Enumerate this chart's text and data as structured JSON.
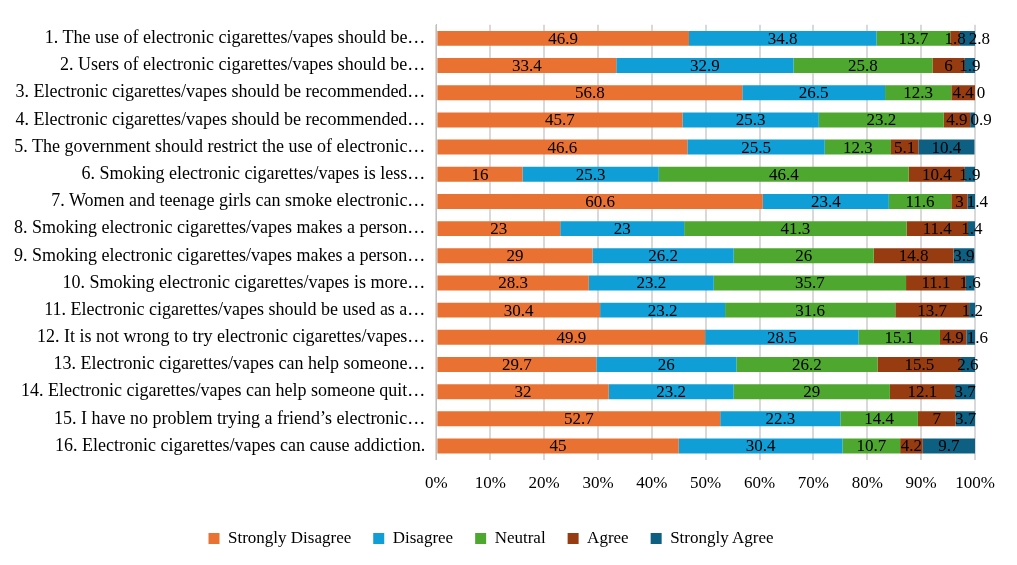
{
  "chart_data": {
    "type": "bar",
    "orientation": "horizontal",
    "stacked": true,
    "data_labels": true,
    "grid": "x",
    "legend": "bottom",
    "categories": [
      "1. The use of electronic cigarettes/vapes should be…",
      "2. Users of electronic cigarettes/vapes should be…",
      "3. Electronic cigarettes/vapes should be recommended…",
      "4. Electronic cigarettes/vapes should be recommended…",
      "5. The government should restrict the use of electronic…",
      "6. Smoking electronic cigarettes/vapes is less…",
      "7. Women and teenage girls can smoke electronic…",
      "8. Smoking electronic cigarettes/vapes makes a person…",
      "9. Smoking electronic cigarettes/vapes makes a person…",
      "10. Smoking electronic cigarettes/vapes is more…",
      "11. Electronic cigarettes/vapes should be used as a…",
      "12. It is not wrong to try electronic cigarettes/vapes…",
      "13. Electronic cigarettes/vapes can help someone…",
      "14. Electronic cigarettes/vapes can help someone quit…",
      "15. I have no problem trying a friend’s electronic…",
      "16. Electronic cigarettes/vapes can cause addiction."
    ],
    "series": [
      {
        "name": "Strongly Disagree",
        "color": "#e97132",
        "values": [
          46.9,
          33.4,
          56.8,
          45.7,
          46.6,
          16,
          60.6,
          23,
          29,
          28.3,
          30.4,
          49.9,
          29.7,
          32,
          52.7,
          45
        ]
      },
      {
        "name": "Disagree",
        "color": "#0f9ed5",
        "values": [
          34.8,
          32.9,
          26.5,
          25.3,
          25.5,
          25.3,
          23.4,
          23,
          26.2,
          23.2,
          23.2,
          28.5,
          26,
          23.2,
          22.3,
          30.4
        ]
      },
      {
        "name": "Neutral",
        "color": "#4ea72e",
        "values": [
          13.7,
          25.8,
          12.3,
          23.2,
          12.3,
          46.4,
          11.6,
          41.3,
          26,
          35.7,
          31.6,
          15.1,
          26.2,
          29,
          14.4,
          10.7
        ]
      },
      {
        "name": "Agree",
        "color": "#963c10",
        "values": [
          1.8,
          6,
          4.4,
          4.9,
          5.1,
          10.4,
          3,
          11.4,
          14.8,
          11.1,
          13.7,
          4.9,
          15.5,
          12.1,
          7,
          4.2
        ]
      },
      {
        "name": "Strongly Agree",
        "color": "#0e6082",
        "values": [
          2.8,
          1.9,
          0,
          0.9,
          10.4,
          1.9,
          1.4,
          1.4,
          3.9,
          1.6,
          1.2,
          1.6,
          2.6,
          3.7,
          3.7,
          9.7
        ]
      }
    ],
    "xlim": [
      0,
      100
    ],
    "xticks": [
      {
        "value": 0,
        "label": "0%"
      },
      {
        "value": 10,
        "label": "10%"
      },
      {
        "value": 20,
        "label": "20%"
      },
      {
        "value": 30,
        "label": "30%"
      },
      {
        "value": 40,
        "label": "40%"
      },
      {
        "value": 50,
        "label": "50%"
      },
      {
        "value": 60,
        "label": "60%"
      },
      {
        "value": 70,
        "label": "70%"
      },
      {
        "value": 80,
        "label": "80%"
      },
      {
        "value": 90,
        "label": "90%"
      },
      {
        "value": 100,
        "label": "100%"
      }
    ]
  }
}
